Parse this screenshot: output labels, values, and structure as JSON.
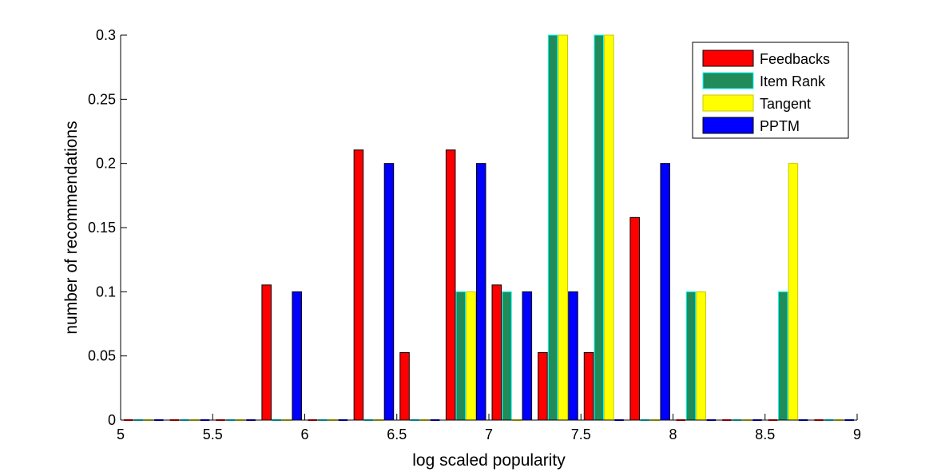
{
  "chart_data": {
    "type": "bar",
    "title": "",
    "xlabel": "log scaled popularity",
    "ylabel": "number of recommendations",
    "xlim": [
      5,
      9
    ],
    "ylim": [
      0,
      0.3
    ],
    "xticks": [
      "5",
      "5.5",
      "6",
      "6.5",
      "7",
      "7.5",
      "8",
      "8.5",
      "9"
    ],
    "yticks": [
      "0",
      "0.05",
      "0.1",
      "0.15",
      "0.2",
      "0.25",
      "0.3"
    ],
    "grid": false,
    "legend_position": "top-right",
    "x": [
      5.125,
      5.375,
      5.625,
      5.875,
      6.125,
      6.375,
      6.625,
      6.875,
      7.125,
      7.375,
      7.625,
      7.875,
      8.125,
      8.375,
      8.625,
      8.875
    ],
    "series": [
      {
        "name": "Feedbacks",
        "color": "#ff0000",
        "values": [
          0,
          0,
          0,
          0.1053,
          0,
          0.2105,
          0.0526,
          0.2105,
          0.1053,
          0.0526,
          0.0526,
          0.1579,
          0,
          0,
          0,
          0
        ]
      },
      {
        "name": "Item Rank",
        "color": "#228b5a",
        "values": [
          0,
          0,
          0,
          0,
          0,
          0,
          0,
          0.1,
          0.1,
          0.3,
          0.3,
          0,
          0.1,
          0,
          0.1,
          0
        ]
      },
      {
        "name": "Tangent",
        "color": "#ffff00",
        "values": [
          0,
          0,
          0,
          0,
          0,
          0,
          0,
          0.1,
          0,
          0.3,
          0.3,
          0,
          0.1,
          0,
          0.2,
          0
        ]
      },
      {
        "name": "PPTM",
        "color": "#0000ff",
        "values": [
          0,
          0,
          0,
          0.1,
          0,
          0.2,
          0,
          0.2,
          0.1,
          0.1,
          0,
          0.2,
          0,
          0,
          0,
          0
        ]
      }
    ]
  }
}
